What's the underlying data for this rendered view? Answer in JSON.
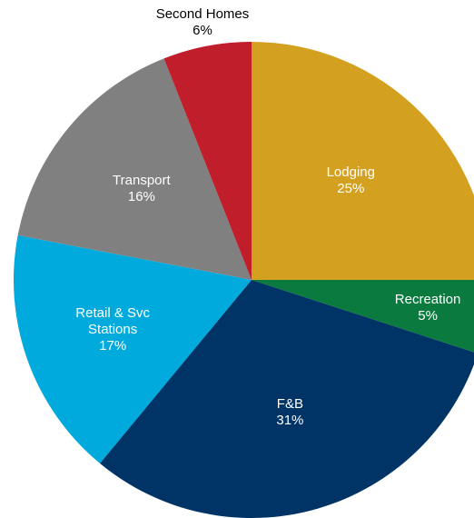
{
  "chart_data": {
    "type": "pie",
    "categories": [
      "Lodging",
      "Recreation",
      "F&B",
      "Retail & Svc Stations",
      "Transport",
      "Second Homes"
    ],
    "values": [
      25,
      5,
      31,
      17,
      16,
      6
    ],
    "value_labels": [
      "25%",
      "5%",
      "31%",
      "17%",
      "16%",
      "6%"
    ],
    "colors": [
      "#d4a020",
      "#0b7a3e",
      "#003366",
      "#00aadd",
      "#808080",
      "#c01e2a"
    ]
  }
}
